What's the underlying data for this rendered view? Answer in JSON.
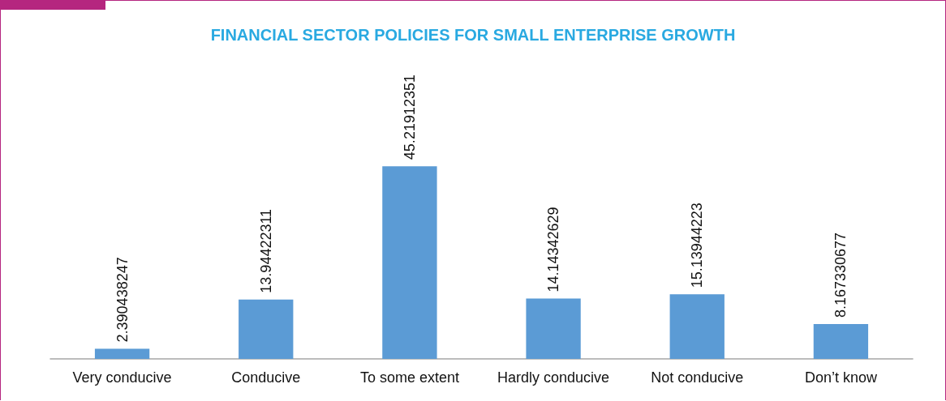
{
  "chart_data": {
    "type": "bar",
    "title": "FINANCIAL SECTOR POLICIES FOR SMALL ENTERPRISE GROWTH",
    "categories": [
      "Very conducive",
      "Conducive",
      "To some extent",
      "Hardly conducive",
      "Not conducive",
      "Don’t know"
    ],
    "values": [
      2.390438247,
      13.94422311,
      45.21912351,
      14.14342629,
      15.13944223,
      8.167330677
    ],
    "color": "#5b9bd5",
    "data_labels": true
  }
}
